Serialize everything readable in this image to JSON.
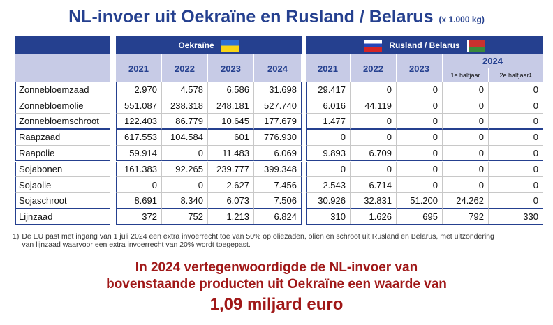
{
  "title": "NL-invoer uit Oekraïne en Rusland / Belarus",
  "unit": "(x 1.000 kg)",
  "table": {
    "groups": [
      "Oekraïne",
      "Rusland / Belarus"
    ],
    "ukraine_years": [
      "2021",
      "2022",
      "2023",
      "2024"
    ],
    "russia_years": [
      "2021",
      "2022",
      "2023",
      "2024"
    ],
    "halves": [
      "1e halfjaar",
      "2e halfjaar"
    ],
    "footnote_ref": "1",
    "rows": [
      [
        "Zonnebloemzaad",
        "2.970",
        "4.578",
        "6.586",
        "31.698",
        "29.417",
        "0",
        "0",
        "0",
        "0"
      ],
      [
        "Zonnebloemolie",
        "551.087",
        "238.318",
        "248.181",
        "527.740",
        "6.016",
        "44.119",
        "0",
        "0",
        "0"
      ],
      [
        "Zonnebloemschroot",
        "122.403",
        "86.779",
        "10.645",
        "177.679",
        "1.477",
        "0",
        "0",
        "0",
        "0"
      ],
      [
        "Raapzaad",
        "617.553",
        "104.584",
        "601",
        "776.930",
        "0",
        "0",
        "0",
        "0",
        "0"
      ],
      [
        "Raapolie",
        "59.914",
        "0",
        "11.483",
        "6.069",
        "9.893",
        "6.709",
        "0",
        "0",
        "0"
      ],
      [
        "Sojabonen",
        "161.383",
        "92.265",
        "239.777",
        "399.348",
        "0",
        "0",
        "0",
        "0",
        "0"
      ],
      [
        "Sojaolie",
        "0",
        "0",
        "2.627",
        "7.456",
        "2.543",
        "6.714",
        "0",
        "0",
        "0"
      ],
      [
        "Sojaschroot",
        "8.691",
        "8.340",
        "6.073",
        "7.506",
        "30.926",
        "32.831",
        "51.200",
        "24.262",
        "0"
      ],
      [
        "Lijnzaad",
        "372",
        "752",
        "1.213",
        "6.824",
        "310",
        "1.626",
        "695",
        "792",
        "330"
      ]
    ]
  },
  "footnote": {
    "marker": "1)",
    "lines": [
      "De EU past met ingang van 1 juli 2024 een extra invoerrecht toe van 50% op oliezaden, oliën en schroot uit Rusland en Belarus, met uitzondering",
      "van lijnzaad waarvoor een extra invoerrecht van 20% wordt toegepast."
    ]
  },
  "conclusion": [
    "In 2024 vertegenwoordigde de NL-invoer van",
    "bovenstaande producten uit Oekraïne een waarde van",
    "1,09 miljard euro"
  ]
}
